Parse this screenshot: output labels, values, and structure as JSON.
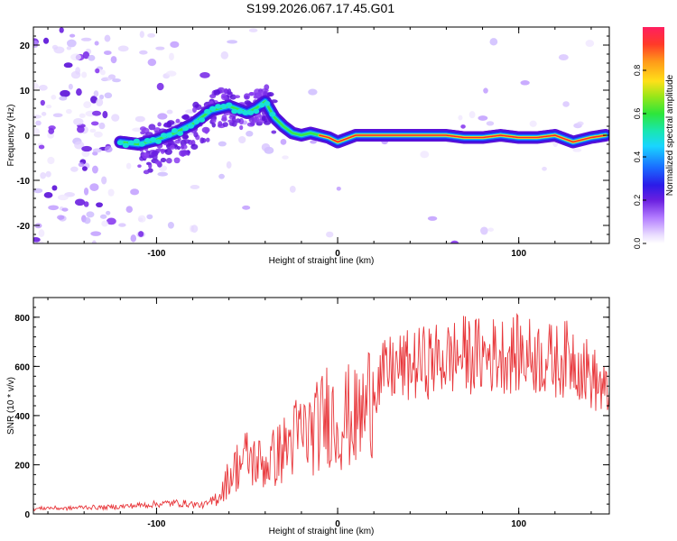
{
  "title": "S199.2026.067.17.45.G01",
  "colors": {
    "snr_line": "#e8363a",
    "spectrogram_ridge": [
      "#3a1fd6",
      "#1a6bff",
      "#19e0d8",
      "#39e64a",
      "#ffe019",
      "#ff2828"
    ],
    "scatter_faint": "#c8b4ff",
    "scatter_strong": "#6a1fe0"
  },
  "chart_data": [
    {
      "type": "heatmap",
      "name": "spectrogram",
      "xlabel": "Height of straight line (km)",
      "ylabel": "Frequency (Hz)",
      "xlim": [
        -168,
        150
      ],
      "ylim": [
        -24,
        24
      ],
      "xticks": [
        -100,
        0,
        100
      ],
      "yticks": [
        -20,
        -10,
        0,
        10,
        20
      ],
      "colorbar": {
        "label": "Normalized spectral amplitude",
        "range": [
          0.0,
          1.0
        ],
        "ticks": [
          "0.0",
          "0.2",
          "0.4",
          "0.6",
          "0.8"
        ]
      },
      "ridge_line": {
        "x": [
          -120,
          -110,
          -100,
          -90,
          -80,
          -70,
          -60,
          -50,
          -45,
          -40,
          -35,
          -30,
          -25,
          -20,
          -15,
          -10,
          -5,
          0,
          10,
          20,
          30,
          40,
          50,
          60,
          70,
          80,
          90,
          100,
          110,
          120,
          130,
          140,
          148
        ],
        "y": [
          -1.5,
          -2.0,
          -1.0,
          0.5,
          2.5,
          5.5,
          6.5,
          5.0,
          6.0,
          7.5,
          4.0,
          2.0,
          0.5,
          0.0,
          0.5,
          0.0,
          -0.5,
          -1.5,
          0.0,
          0.0,
          0.0,
          0.0,
          0.0,
          0.0,
          -0.5,
          -0.5,
          0.0,
          -0.5,
          -0.5,
          0.0,
          -1.5,
          -0.5,
          0.0
        ]
      }
    },
    {
      "type": "line",
      "name": "snr",
      "xlabel": "Height of straight line (km)",
      "ylabel": "SNR (10 * v/v)",
      "xlim": [
        -168,
        150
      ],
      "ylim": [
        0,
        880
      ],
      "xticks": [
        -100,
        0,
        100
      ],
      "yticks": [
        0,
        200,
        400,
        600,
        800
      ],
      "series": [
        {
          "name": "SNR",
          "x": [
            -168,
            -160,
            -150,
            -140,
            -130,
            -120,
            -110,
            -100,
            -90,
            -80,
            -75,
            -70,
            -65,
            -60,
            -55,
            -50,
            -45,
            -40,
            -35,
            -30,
            -25,
            -20,
            -15,
            -10,
            -5,
            0,
            5,
            10,
            15,
            20,
            25,
            30,
            40,
            50,
            60,
            70,
            80,
            90,
            100,
            110,
            120,
            130,
            135,
            140,
            145,
            148
          ],
          "y": [
            20,
            25,
            22,
            28,
            26,
            30,
            35,
            40,
            45,
            40,
            35,
            45,
            80,
            150,
            200,
            230,
            210,
            200,
            230,
            260,
            300,
            330,
            330,
            360,
            420,
            360,
            400,
            380,
            420,
            520,
            560,
            590,
            600,
            620,
            630,
            650,
            640,
            650,
            650,
            640,
            620,
            640,
            600,
            560,
            520,
            480
          ]
        }
      ]
    }
  ]
}
